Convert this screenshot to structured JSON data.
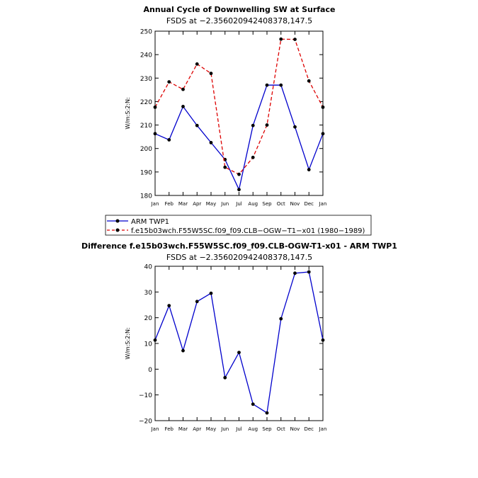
{
  "chart_data": [
    {
      "type": "line",
      "title": "Annual Cycle of Downwelling SW at Surface",
      "subtitle": "FSDS  at  −2.356020942408378,147.5",
      "ylabel": "W/m:S:2:N:",
      "xlabel": "",
      "categories": [
        "Jan",
        "Feb",
        "Mar",
        "Apr",
        "May",
        "Jun",
        "Jul",
        "Aug",
        "Sep",
        "Oct",
        "Nov",
        "Dec",
        "Jan"
      ],
      "ylim": [
        180,
        250
      ],
      "yticks": [
        "180",
        "190",
        "200",
        "210",
        "220",
        "230",
        "240",
        "250"
      ],
      "series": [
        {
          "name": "ARM TWP1",
          "color": "#0000cc",
          "dash": "solid",
          "values": [
            206.3,
            203.7,
            217.9,
            209.8,
            202.5,
            195.3,
            182.5,
            209.8,
            227.0,
            227.0,
            209.2,
            191.0,
            206.3
          ]
        },
        {
          "name": "f.e15b03wch.F55W5SC.f09_f09.CLB−OGW−T1−x01 (1980−1989)",
          "color": "#dd0000",
          "dash": "dashed",
          "values": [
            217.6,
            228.4,
            225.2,
            236.0,
            232.0,
            192.0,
            189.0,
            196.2,
            210.0,
            246.6,
            246.5,
            228.8,
            217.6
          ]
        }
      ],
      "legend_position": "bottom"
    },
    {
      "type": "line",
      "title": "Difference f.e15b03wch.F55W5SC.f09_f09.CLB-OGW-T1-x01 - ARM TWP1",
      "subtitle": "FSDS  at  −2.356020942408378,147.5",
      "ylabel": "W/m:S:2:N:",
      "xlabel": "",
      "categories": [
        "Jan",
        "Feb",
        "Mar",
        "Apr",
        "May",
        "Jun",
        "Jul",
        "Aug",
        "Sep",
        "Oct",
        "Nov",
        "Dec",
        "Jan"
      ],
      "ylim": [
        -20,
        40
      ],
      "yticks": [
        "−20",
        "−10",
        "0",
        "10",
        "20",
        "30",
        "40"
      ],
      "series": [
        {
          "name": "Difference",
          "color": "#0000cc",
          "dash": "solid",
          "values": [
            11.3,
            24.7,
            7.2,
            26.3,
            29.5,
            -3.3,
            6.5,
            -13.6,
            -17.0,
            19.6,
            37.3,
            37.8,
            11.3
          ]
        }
      ]
    }
  ]
}
